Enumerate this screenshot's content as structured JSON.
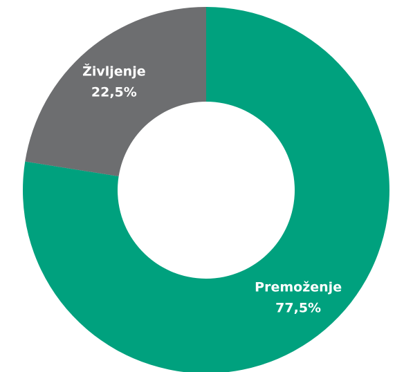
{
  "chart_data": {
    "type": "donut",
    "categories": [
      "Premoženje",
      "Življenje"
    ],
    "values": [
      77.5,
      22.5
    ],
    "value_labels": [
      "77,5%",
      "22,5%"
    ],
    "colors": [
      "#00a17e",
      "#6d6e70"
    ]
  }
}
